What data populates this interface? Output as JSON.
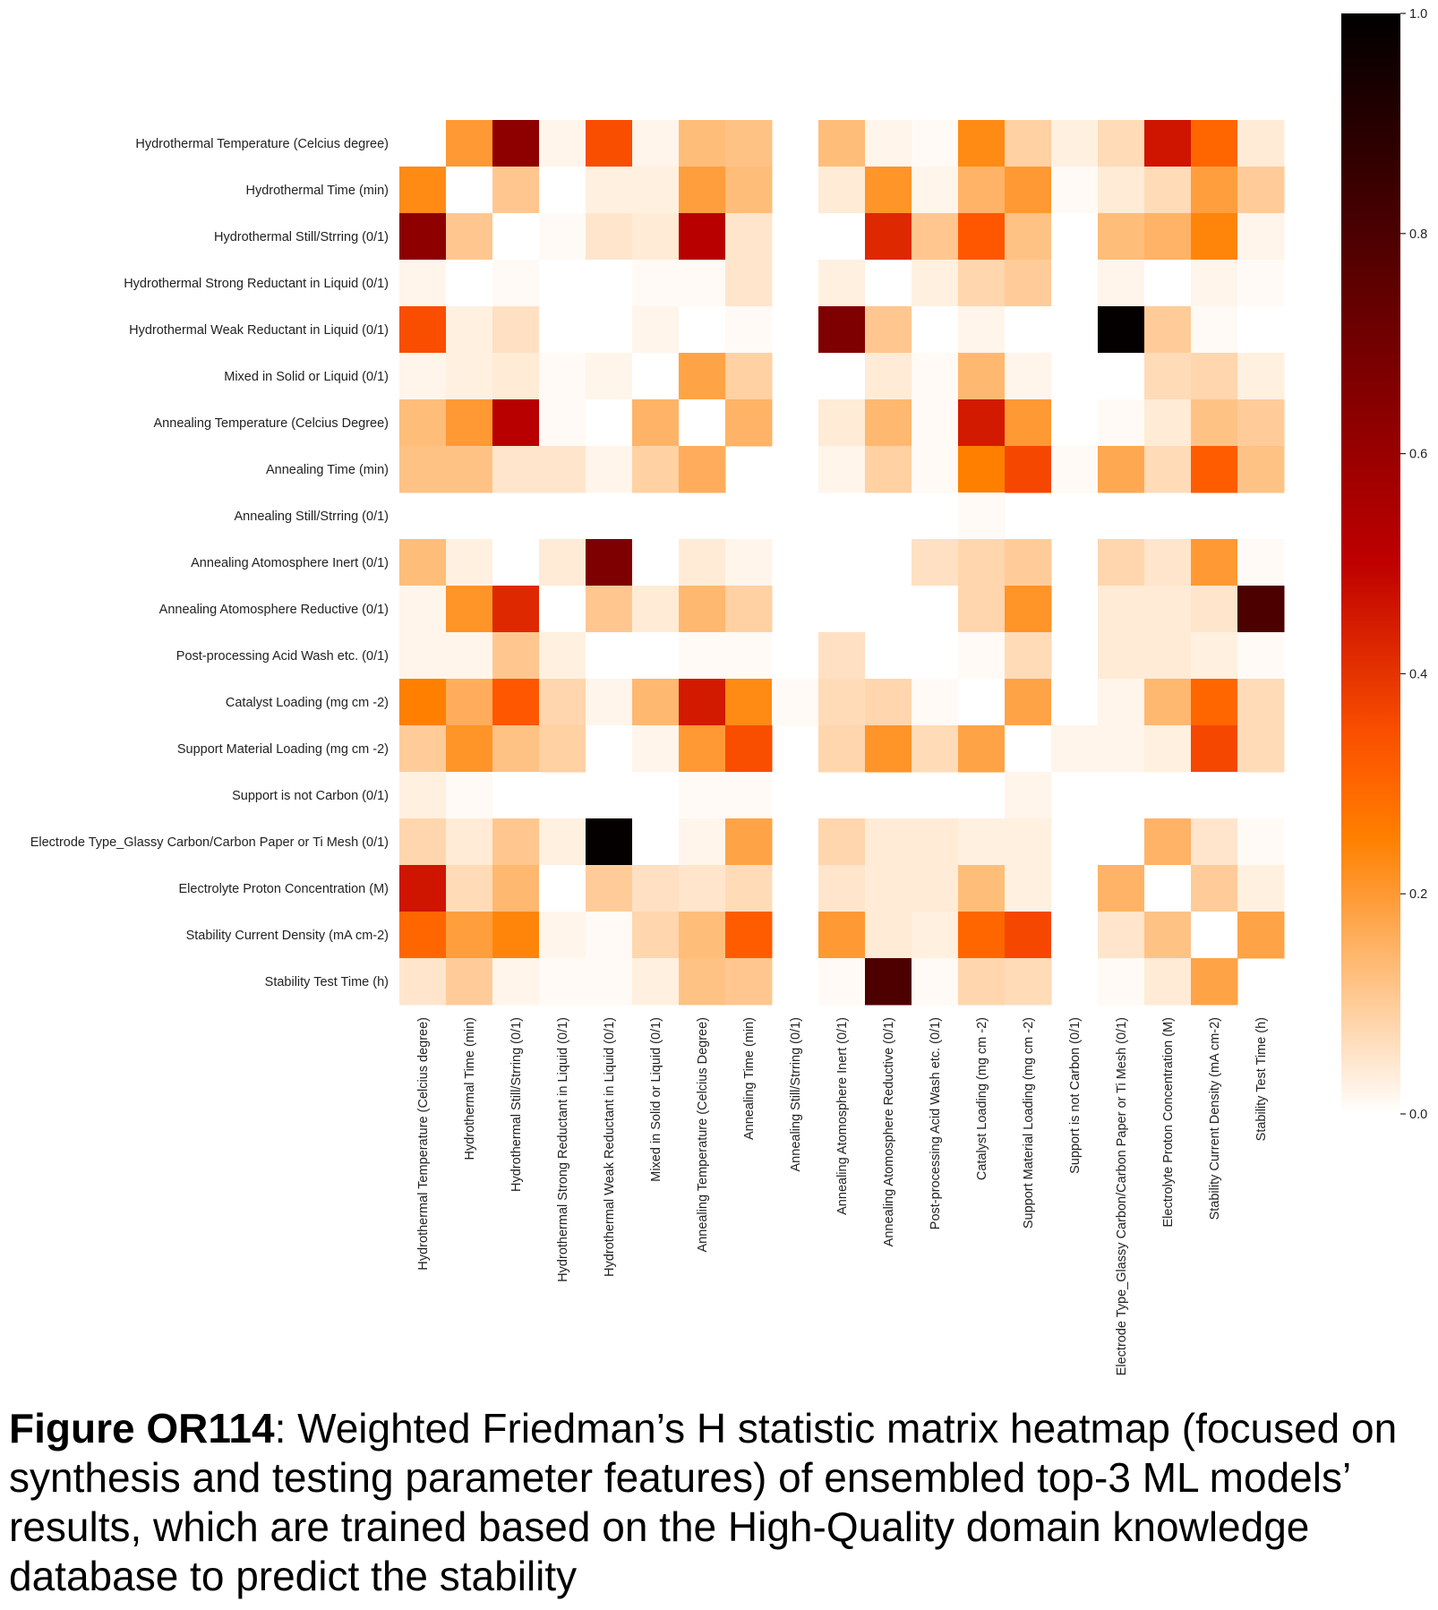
{
  "chart_data": {
    "type": "heatmap",
    "title": "",
    "xlabel": "",
    "ylabel": "",
    "features": [
      "Hydrothermal Temperature (Celcius degree)",
      "Hydrothermal Time (min)",
      "Hydrothermal Still/Strring (0/1)",
      "Hydrothermal Strong Reductant in Liquid (0/1)",
      "Hydrothermal Weak Reductant in Liquid (0/1)",
      "Mixed in Solid or Liquid (0/1)",
      "Annealing Temperature (Celcius Degree)",
      "Annealing Time (min)",
      "Annealing Still/Strring (0/1)",
      "Annealing Atomosphere Inert (0/1)",
      "Annealing Atomosphere Reductive (0/1)",
      "Post-processing Acid Wash etc. (0/1)",
      "Catalyst Loading (mg cm -2)",
      "Support Material Loading (mg cm -2)",
      "Support is not Carbon (0/1)",
      "Electrode Type_Glassy Carbon/Carbon Paper or Ti Mesh (0/1)",
      "Electrolyte Proton Concentration (M)",
      "Stability Current Density (mA cm-2)",
      "Stability Test Time (h)"
    ],
    "values": [
      [
        null,
        0.2,
        0.63,
        0.02,
        0.35,
        0.02,
        0.13,
        0.12,
        null,
        0.13,
        0.02,
        0.01,
        0.23,
        0.09,
        0.03,
        0.07,
        0.46,
        0.3,
        0.04
      ],
      [
        0.23,
        0.0,
        0.11,
        0.0,
        0.03,
        0.03,
        0.19,
        0.13,
        null,
        0.04,
        0.21,
        0.02,
        0.15,
        0.2,
        0.01,
        0.04,
        0.07,
        0.19,
        0.1
      ],
      [
        0.63,
        0.11,
        0.0,
        0.01,
        0.05,
        0.04,
        0.52,
        0.05,
        null,
        0.0,
        0.42,
        0.11,
        0.33,
        0.12,
        0.0,
        0.13,
        0.15,
        0.24,
        0.02
      ],
      [
        0.02,
        0.0,
        0.01,
        0.0,
        0.0,
        0.01,
        0.01,
        0.05,
        null,
        0.03,
        0.0,
        0.03,
        0.08,
        0.1,
        0.0,
        0.02,
        0.0,
        0.02,
        0.01
      ],
      [
        0.35,
        0.03,
        0.06,
        0.0,
        0.0,
        0.02,
        0.0,
        0.01,
        null,
        0.67,
        0.11,
        0.0,
        0.02,
        0.0,
        null,
        0.99,
        0.1,
        0.01,
        0.0
      ],
      [
        0.02,
        0.03,
        0.04,
        0.01,
        0.02,
        0.0,
        0.18,
        0.09,
        null,
        0.0,
        0.04,
        0.01,
        0.14,
        0.02,
        null,
        0.0,
        0.07,
        0.08,
        0.03
      ],
      [
        0.13,
        0.2,
        0.52,
        0.01,
        0.0,
        0.15,
        0.0,
        0.15,
        null,
        0.04,
        0.14,
        0.01,
        0.45,
        0.2,
        0.0,
        0.01,
        0.04,
        0.12,
        0.1
      ],
      [
        0.12,
        0.12,
        0.05,
        0.05,
        0.02,
        0.09,
        0.16,
        null,
        null,
        0.02,
        0.09,
        0.01,
        0.25,
        0.36,
        0.01,
        0.17,
        0.07,
        0.32,
        0.12
      ],
      [
        null,
        null,
        null,
        null,
        null,
        null,
        null,
        null,
        null,
        null,
        null,
        null,
        0.01,
        null,
        null,
        null,
        null,
        null,
        null
      ],
      [
        0.13,
        0.03,
        0.0,
        0.04,
        0.67,
        0.0,
        0.04,
        0.02,
        null,
        null,
        null,
        0.06,
        0.08,
        0.1,
        null,
        0.08,
        0.05,
        0.2,
        0.01
      ],
      [
        0.02,
        0.21,
        0.42,
        0.0,
        0.11,
        0.04,
        0.14,
        0.09,
        null,
        null,
        null,
        0.0,
        0.08,
        0.21,
        null,
        0.04,
        0.04,
        0.05,
        0.8
      ],
      [
        0.02,
        0.02,
        0.11,
        0.03,
        0.0,
        0.0,
        0.01,
        0.01,
        null,
        0.06,
        0.0,
        0.0,
        0.01,
        0.07,
        null,
        0.04,
        0.04,
        0.03,
        0.01
      ],
      [
        0.25,
        0.16,
        0.33,
        0.08,
        0.02,
        0.14,
        0.45,
        0.23,
        0.01,
        0.07,
        0.08,
        0.01,
        0.0,
        0.18,
        0.0,
        0.02,
        0.14,
        0.3,
        0.07
      ],
      [
        0.1,
        0.21,
        0.12,
        0.09,
        0.0,
        0.02,
        0.2,
        0.35,
        null,
        0.08,
        0.21,
        0.07,
        0.18,
        0.0,
        0.02,
        0.02,
        0.03,
        0.36,
        0.07
      ],
      [
        0.03,
        0.01,
        0.0,
        null,
        null,
        null,
        0.01,
        0.01,
        null,
        null,
        null,
        null,
        null,
        0.02,
        null,
        null,
        null,
        0.0,
        null
      ],
      [
        0.08,
        0.04,
        0.11,
        0.03,
        0.99,
        0.0,
        0.02,
        0.18,
        null,
        0.08,
        0.04,
        0.04,
        0.03,
        0.03,
        null,
        null,
        0.15,
        0.05,
        0.01
      ],
      [
        0.46,
        0.07,
        0.14,
        0.0,
        0.1,
        0.06,
        0.05,
        0.07,
        null,
        0.05,
        0.04,
        0.04,
        0.13,
        0.03,
        null,
        0.15,
        0.0,
        0.1,
        0.03
      ],
      [
        0.3,
        0.19,
        0.24,
        0.02,
        0.01,
        0.08,
        0.13,
        0.32,
        null,
        0.2,
        0.04,
        0.03,
        0.3,
        0.36,
        0.0,
        0.05,
        0.12,
        0.0,
        0.18
      ],
      [
        0.05,
        0.1,
        0.02,
        0.01,
        0.01,
        0.03,
        0.12,
        0.11,
        null,
        0.01,
        0.8,
        0.01,
        0.08,
        0.07,
        null,
        0.01,
        0.04,
        0.18,
        null
      ]
    ],
    "colorbar": {
      "range": [
        0.0,
        1.0
      ],
      "ticks": [
        "0.0",
        "0.2",
        "0.4",
        "0.6",
        "0.8",
        "1.0"
      ],
      "colormap": "gist_heat_r"
    }
  },
  "caption": {
    "label": "Figure OR114",
    "text": ": Weighted Friedman’s H statistic matrix heatmap (focused on synthesis and testing parameter features) of ensembled top-3 ML models’ results, which are trained based on the High-Quality domain knowledge database to predict the stability"
  }
}
